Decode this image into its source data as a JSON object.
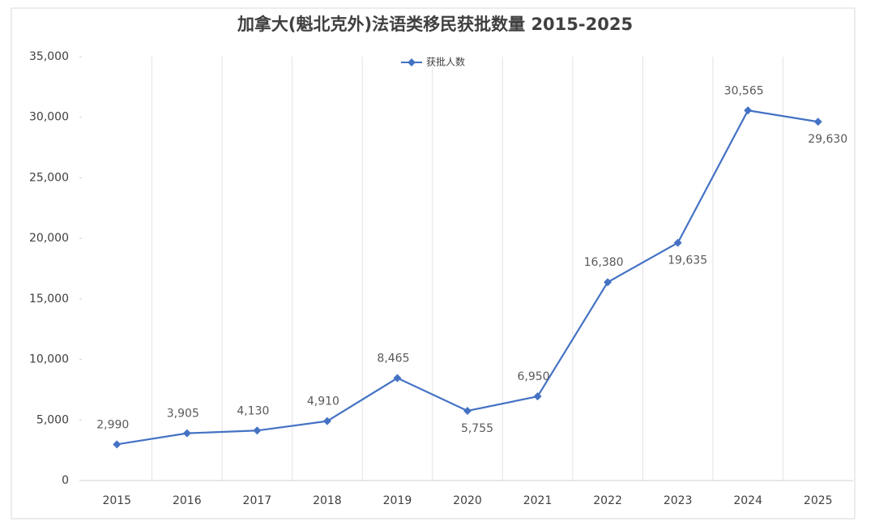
{
  "chart_data": {
    "type": "line",
    "title": "加拿大(魁北克外)法语类移民获批数量 2015-2025",
    "categories": [
      "2015",
      "2016",
      "2017",
      "2018",
      "2019",
      "2020",
      "2021",
      "2022",
      "2023",
      "2024",
      "2025"
    ],
    "series": [
      {
        "name": "获批人数",
        "color": "#4472c4",
        "values": [
          2990,
          3905,
          4130,
          4910,
          8465,
          5755,
          6950,
          16380,
          19635,
          30565,
          29630
        ],
        "value_labels": [
          "2,990",
          "3,905",
          "4,130",
          "4,910",
          "8,465",
          "5,755",
          "6,950",
          "16,380",
          "19,635",
          "30,565",
          "29,630"
        ]
      }
    ],
    "ylim": [
      0,
      35000
    ],
    "yticks": [
      0,
      {
        "value": 5000,
        "label": "5,000"
      },
      {
        "value": 10000,
        "label": "10,000"
      },
      {
        "value": 15000,
        "label": "15,000"
      },
      {
        "value": 20000,
        "label": "20,000"
      },
      {
        "value": 25000,
        "label": "25,000"
      },
      {
        "value": 30000,
        "label": "30,000"
      },
      {
        "value": 35000,
        "label": "35,000"
      }
    ],
    "legend": "top"
  }
}
